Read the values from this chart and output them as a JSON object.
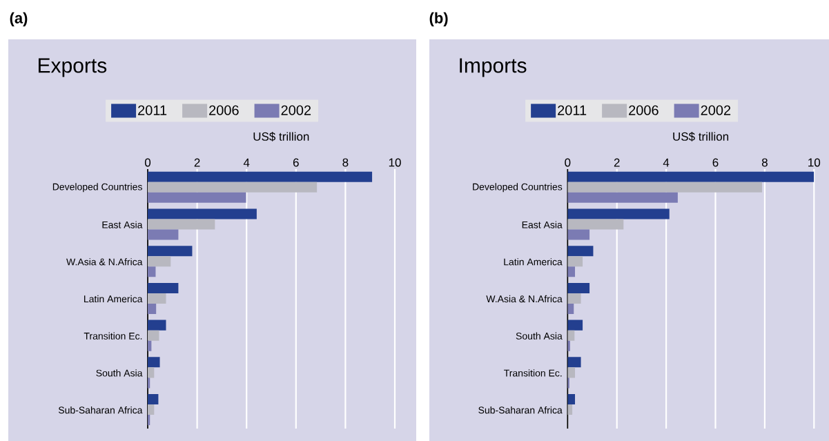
{
  "chart_data": [
    {
      "type": "bar",
      "orientation": "horizontal",
      "title": "Exports",
      "xlabel": "US$ trillion",
      "annotations": [
        "(a)"
      ],
      "categories": [
        "Developed Countries",
        "East Asia",
        "W.Asia & N.Africa",
        "Latin America",
        "Transition Ec.",
        "South Asia",
        "Sub-Saharan Africa"
      ],
      "series": [
        {
          "name": "2011",
          "color": "#233f8f",
          "values": [
            9.08,
            4.41,
            1.8,
            1.24,
            0.74,
            0.49,
            0.43
          ]
        },
        {
          "name": "2006",
          "color": "#b8b8c0",
          "values": [
            6.85,
            2.72,
            0.93,
            0.74,
            0.46,
            0.26,
            0.26
          ]
        },
        {
          "name": "2002",
          "color": "#7b7bb3",
          "values": [
            3.98,
            1.24,
            0.32,
            0.34,
            0.15,
            0.09,
            0.09
          ]
        }
      ],
      "xlim": [
        0,
        10
      ],
      "xticks": [
        0,
        2,
        4,
        6,
        8,
        10
      ],
      "grid": "x",
      "legend": "top"
    },
    {
      "type": "bar",
      "orientation": "horizontal",
      "title": "Imports",
      "xlabel": "US$ trillion",
      "annotations": [
        "(b)"
      ],
      "categories": [
        "Developed Countries",
        "East Asia",
        "Latin America",
        "W.Asia & N.Africa",
        "South Asia",
        "Transition Ec.",
        "Sub-Saharan Africa"
      ],
      "series": [
        {
          "name": "2011",
          "color": "#233f8f",
          "values": [
            10.0,
            4.13,
            1.04,
            0.89,
            0.61,
            0.54,
            0.3
          ]
        },
        {
          "name": "2006",
          "color": "#b8b8c0",
          "values": [
            7.89,
            2.27,
            0.61,
            0.54,
            0.28,
            0.3,
            0.19
          ]
        },
        {
          "name": "2002",
          "color": "#7b7bb3",
          "values": [
            4.47,
            0.89,
            0.3,
            0.25,
            0.1,
            0.07,
            null
          ]
        }
      ],
      "xlim": [
        0,
        10
      ],
      "xticks": [
        0,
        2,
        4,
        6,
        8,
        10
      ],
      "grid": "x",
      "legend": "top"
    }
  ]
}
